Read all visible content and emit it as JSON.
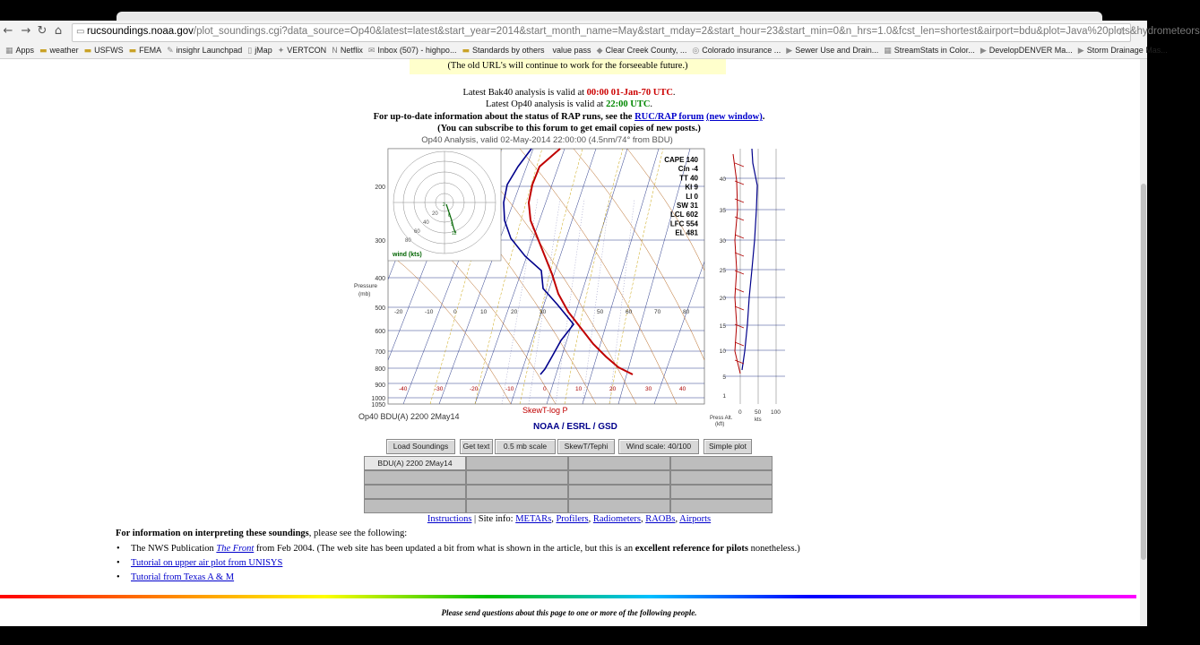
{
  "browser": {
    "url_host": "rucsoundings.noaa.gov",
    "url_rest": "/plot_soundings.cgi?data_source=Op40&latest=latest&start_year=2014&start_month_name=May&start_mday=2&start_hour=23&start_min=0&n_hrs=1.0&fcst_len=shortest&airport=bdu&plot=Java%20plots&hydrometeors",
    "bookmarks": [
      "Apps",
      "weather",
      "USFWS",
      "FEMA",
      "insighr Launchpad",
      "jMap",
      "VERTCON",
      "Netflix",
      "Inbox (507) - highpo...",
      "Standards by others",
      "value pass",
      "Clear Creek County, ...",
      "Colorado insurance ...",
      "Sewer Use and Drain...",
      "StreamStats in Color...",
      "DevelopDENVER Ma...",
      "Storm Drainage Mas..."
    ]
  },
  "page": {
    "notice": "(The old URL's will continue to work for the forseeable future.)",
    "bak40_prefix": "Latest Bak40 analysis is valid at ",
    "bak40_time": "00:00 01-Jan-70 UTC",
    "op40_prefix": "Latest Op40 analysis is valid at ",
    "op40_time": "22:00 UTC",
    "info_prefix": "For up-to-date information about the status of RAP runs, see the ",
    "forum_link": "RUC/RAP forum",
    "new_window_link": "(new window)",
    "subscribe": "(You can subscribe to this forum to get email copies of new posts.)",
    "plot_caption": "Op40 Analysis, valid 02-May-2014 22:00:00 (4.5nm/74° from BDU)",
    "station_label": "Op40 BDU(A) 2200 2May14",
    "chart_type_label": "SkewT-log P",
    "agency_label": "NOAA / ESRL / GSD",
    "pressure_axis_label_1": "Pressure",
    "pressure_axis_label_2": "(mb)",
    "press_alt_label_1": "Press Alt.",
    "press_alt_label_2": "(kft)",
    "kts_label": "kts",
    "wind_label": "wind (kts)",
    "indices": [
      "CAPE 140",
      "Cin -4",
      "TT 40",
      "KI 9",
      "LI 0",
      "SW 31",
      "LCL 602",
      "LFC 554",
      "EL 481"
    ],
    "buttons": [
      "Load Soundings",
      "Get text",
      "0.5 mb scale",
      "SkewT/Tephi",
      "Wind scale: 40/100",
      "Simple plot"
    ],
    "grid_selected": "BDU(A) 2200 2May14",
    "sitelinks": {
      "instructions": "Instructions",
      "siteinfo": " | Site info: ",
      "metars": "METARs",
      "profilers": "Profilers",
      "radiometers": "Radiometers",
      "raobs": "RAOBs",
      "airports": "Airports"
    },
    "interp_bold": "For information on interpreting these soundings",
    "interp_rest": ", please see the following:",
    "list1_a": "The NWS Publication ",
    "list1_link": "The Front",
    "list1_b": " from Feb 2004. (The web site has been updated a bit from what is shown in the article, but this is an ",
    "list1_bold": "excellent reference for pilots",
    "list1_c": " nonetheless.)",
    "list2": "Tutorial on upper air plot from UNISYS",
    "list3": "Tutorial from Texas A & M",
    "footer": "Please send questions about this page to one or more of the following people."
  },
  "colors": {
    "temp": "#c00000",
    "dewpoint": "#00008b",
    "wind": "#b00000",
    "hodograph": "#006400"
  }
}
